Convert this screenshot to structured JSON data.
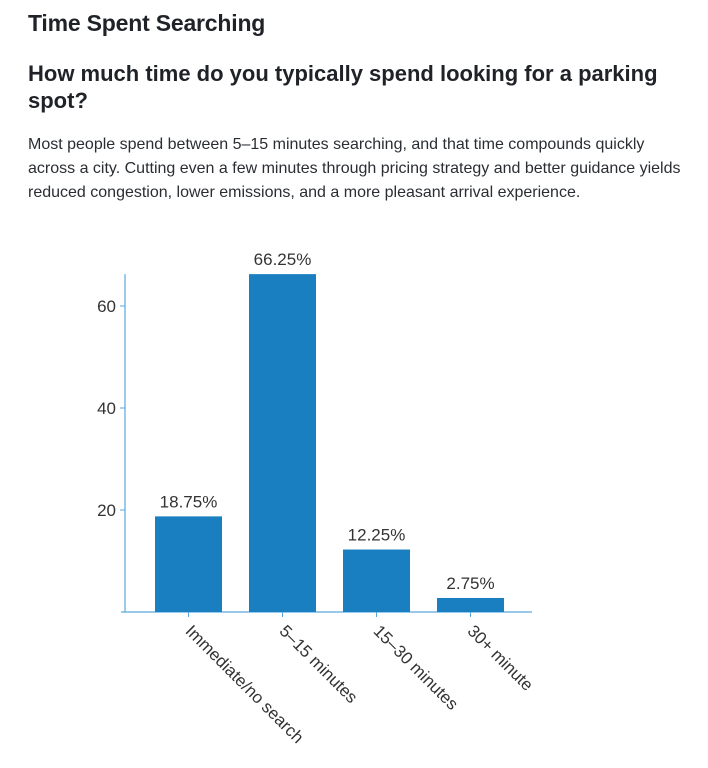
{
  "section_title": "Time Spent Searching",
  "question": "How much time do you typically spend looking for a parking spot?",
  "description": "Most people spend between 5–15 minutes searching, and that time compounds quickly across a city. Cutting even a few minutes through pricing strategy and better guidance yields reduced congestion, lower emissions, and a more pleasant arrival experience.",
  "chart_data": {
    "type": "bar",
    "categories": [
      "Immediate/no search",
      "5–15 minutes",
      "15–30 minutes",
      "30+ minute"
    ],
    "values": [
      18.75,
      66.25,
      12.25,
      2.75
    ],
    "data_labels": [
      "18.75%",
      "66.25%",
      "12.25%",
      "2.75%"
    ],
    "yticks": [
      20,
      40,
      60
    ],
    "ylim": [
      0,
      66.25
    ],
    "grid": false,
    "bar_color": "#1a7fc1",
    "axis_color": "#5aa7de"
  }
}
